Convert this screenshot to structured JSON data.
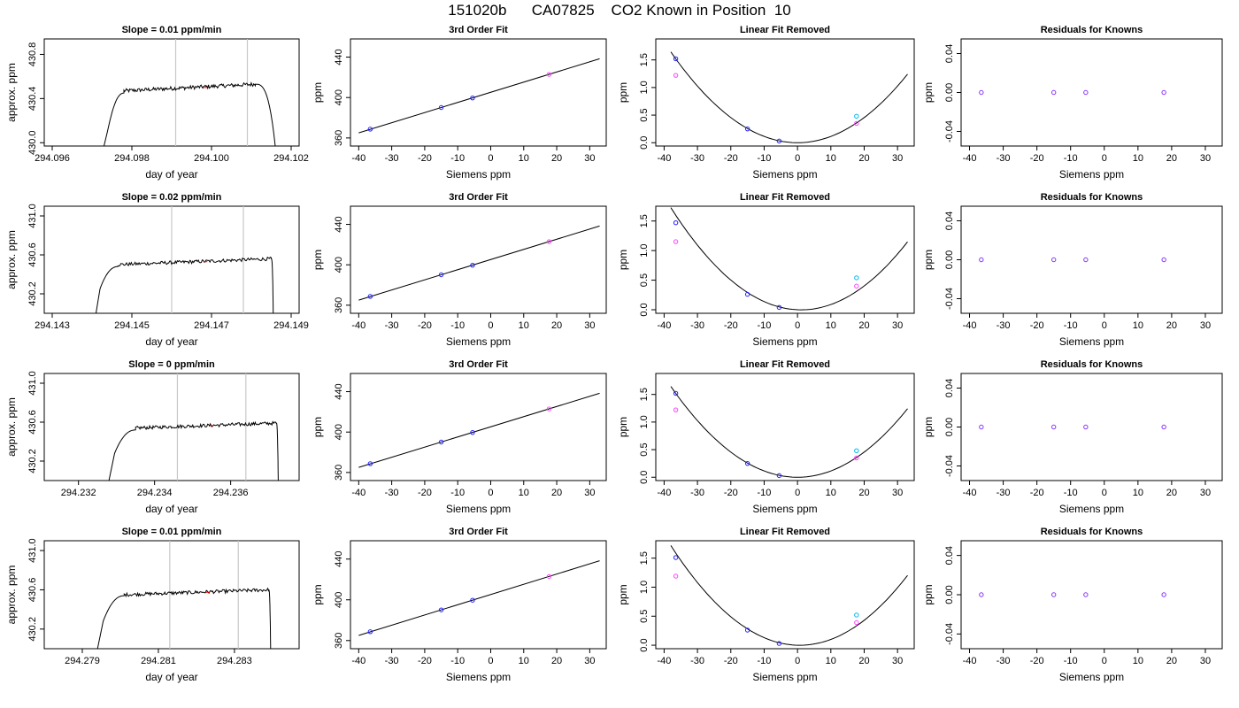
{
  "title": "151020b      CA07825    CO2 Known in Position  10",
  "chart_data": [
    {
      "type": "line",
      "title": "Slope =  0.01  ppm/min",
      "xlabel": "day of year",
      "ylabel": "approx. ppm",
      "xlim": [
        294.0958,
        294.1022
      ],
      "ylim": [
        429.97,
        430.94
      ],
      "xticks": [
        "294.096",
        "294.098",
        "294.100",
        "294.102"
      ],
      "xtick_values": [
        294.096,
        294.098,
        294.1,
        294.102
      ],
      "yticks": [
        "430.0",
        "430.4",
        "430.8"
      ],
      "ytick_values": [
        430.0,
        430.4,
        430.8
      ],
      "vlines": [
        294.0991,
        294.1009
      ],
      "red_marks": [
        294.09985
      ],
      "segments": [
        {
          "x0": 294.0973,
          "x1": 294.09745,
          "y0": 429.97,
          "y1": 430.2
        },
        {
          "x0": 294.09745,
          "x1": 294.0978,
          "y0": 430.2,
          "y1": 430.45,
          "shape": "rise"
        },
        {
          "x0": 294.0978,
          "x1": 294.1011,
          "y0": 430.47,
          "y1": 430.53,
          "shape": "plateau"
        },
        {
          "x0": 294.1011,
          "x1": 294.1016,
          "y0": 430.53,
          "y1": 429.97,
          "shape": "fall"
        }
      ]
    },
    {
      "type": "scatter",
      "title": "3rd Order Fit",
      "xlabel": "Siemens ppm",
      "ylabel": "ppm",
      "xlim": [
        -42.5,
        35
      ],
      "ylim": [
        352,
        458
      ],
      "xticks": [
        "-40",
        "-30",
        "-20",
        "-10",
        "0",
        "10",
        "20",
        "30"
      ],
      "xtick_values": [
        -40,
        -30,
        -20,
        -10,
        0,
        10,
        20,
        30
      ],
      "yticks": [
        "360",
        "400",
        "440"
      ],
      "ytick_values": [
        360,
        400,
        440
      ],
      "fit_line": {
        "slope": 1.005,
        "intercept": 405.2,
        "x": [
          -40,
          33
        ]
      },
      "points": [
        {
          "x": -36.5,
          "y": 368.7,
          "color": "#2222ff"
        },
        {
          "x": -15,
          "y": 390.1,
          "color": "#2222ff"
        },
        {
          "x": -5.5,
          "y": 399.6,
          "color": "#2222ff"
        },
        {
          "x": 17.7,
          "y": 422.9,
          "color": "#ff44ff"
        }
      ]
    },
    {
      "type": "scatter",
      "title": "Linear Fit Removed",
      "xlabel": "Siemens ppm",
      "ylabel": "ppm",
      "xlim": [
        -42.5,
        35
      ],
      "ylim": [
        -0.06,
        1.88
      ],
      "xticks": [
        "-40",
        "-30",
        "-20",
        "-10",
        "0",
        "10",
        "20",
        "30"
      ],
      "xtick_values": [
        -40,
        -30,
        -20,
        -10,
        0,
        10,
        20,
        30
      ],
      "yticks": [
        "0.0",
        "0.5",
        "1.0",
        "1.5"
      ],
      "ytick_values": [
        0,
        0.5,
        1.0,
        1.5
      ],
      "curve": {
        "a": 0.00114,
        "b": 0.0,
        "c": 0.0,
        "x": [
          -38,
          33
        ]
      },
      "points": [
        {
          "x": -36.5,
          "y": 1.52,
          "color": "#2222ff"
        },
        {
          "x": -36.5,
          "y": 1.22,
          "color": "#ff44ff"
        },
        {
          "x": -15,
          "y": 0.25,
          "color": "#2222ff"
        },
        {
          "x": -5.5,
          "y": 0.03,
          "color": "#2222ff"
        },
        {
          "x": 17.7,
          "y": 0.48,
          "color": "#00bbee"
        },
        {
          "x": 17.7,
          "y": 0.35,
          "color": "#ff44ff"
        }
      ]
    },
    {
      "type": "scatter",
      "title": "Residuals for Knowns",
      "xlabel": "Siemens ppm",
      "ylabel": "ppm",
      "xlim": [
        -42.5,
        35
      ],
      "ylim": [
        -0.055,
        0.055
      ],
      "xticks": [
        "-40",
        "-30",
        "-20",
        "-10",
        "0",
        "10",
        "20",
        "30"
      ],
      "xtick_values": [
        -40,
        -30,
        -20,
        -10,
        0,
        10,
        20,
        30
      ],
      "yticks": [
        "-0.04",
        "0.00",
        "0.04"
      ],
      "ytick_values": [
        -0.04,
        0,
        0.04
      ],
      "points": [
        {
          "x": -36.5,
          "y": 0,
          "color": "#8833ff"
        },
        {
          "x": -15,
          "y": 0,
          "color": "#8833ff"
        },
        {
          "x": -5.5,
          "y": 0,
          "color": "#8833ff"
        },
        {
          "x": 17.7,
          "y": 0,
          "color": "#8833ff"
        }
      ]
    },
    {
      "type": "line",
      "title": "Slope =  0.02  ppm/min",
      "xlabel": "day of year",
      "ylabel": "approx. ppm",
      "xlim": [
        294.1428,
        294.1492
      ],
      "ylim": [
        430.0,
        431.1
      ],
      "xticks": [
        "294.143",
        "294.145",
        "294.147",
        "294.149"
      ],
      "xtick_values": [
        294.143,
        294.145,
        294.147,
        294.149
      ],
      "yticks": [
        "430.2",
        "430.6",
        "431.0"
      ],
      "ytick_values": [
        430.2,
        430.6,
        431.0
      ],
      "vlines": [
        294.146,
        294.1478
      ],
      "red_marks": [
        294.14685
      ],
      "segments": [
        {
          "x0": 294.1441,
          "x1": 294.1442,
          "y0": 430.0,
          "y1": 430.25
        },
        {
          "x0": 294.1442,
          "x1": 294.14465,
          "y0": 430.25,
          "y1": 430.48,
          "shape": "rise"
        },
        {
          "x0": 294.14465,
          "x1": 294.1485,
          "y0": 430.5,
          "y1": 430.56,
          "shape": "plateau"
        },
        {
          "x0": 294.1485,
          "x1": 294.14855,
          "y0": 430.56,
          "y1": 430.0,
          "shape": "fall"
        }
      ]
    },
    {
      "type": "scatter",
      "title": "3rd Order Fit",
      "xlabel": "Siemens ppm",
      "ylabel": "ppm",
      "xlim": [
        -42.5,
        35
      ],
      "ylim": [
        352,
        458
      ],
      "xticks": [
        "-40",
        "-30",
        "-20",
        "-10",
        "0",
        "10",
        "20",
        "30"
      ],
      "xtick_values": [
        -40,
        -30,
        -20,
        -10,
        0,
        10,
        20,
        30
      ],
      "yticks": [
        "360",
        "400",
        "440"
      ],
      "ytick_values": [
        360,
        400,
        440
      ],
      "fit_line": {
        "slope": 1.005,
        "intercept": 405.2,
        "x": [
          -40,
          33
        ]
      },
      "points": [
        {
          "x": -36.5,
          "y": 368.7,
          "color": "#2222ff"
        },
        {
          "x": -15,
          "y": 390.1,
          "color": "#2222ff"
        },
        {
          "x": -5.5,
          "y": 399.6,
          "color": "#2222ff"
        },
        {
          "x": 17.7,
          "y": 422.9,
          "color": "#ff44ff"
        }
      ]
    },
    {
      "type": "scatter",
      "title": "Linear Fit Removed",
      "xlabel": "Siemens ppm",
      "ylabel": "ppm",
      "xlim": [
        -42.5,
        35
      ],
      "ylim": [
        -0.06,
        1.75
      ],
      "xticks": [
        "-40",
        "-30",
        "-20",
        "-10",
        "0",
        "10",
        "20",
        "30"
      ],
      "xtick_values": [
        -40,
        -30,
        -20,
        -10,
        0,
        10,
        20,
        30
      ],
      "yticks": [
        "0.0",
        "0.5",
        "1.0",
        "1.5"
      ],
      "ytick_values": [
        0,
        0.5,
        1.0,
        1.5
      ],
      "curve": {
        "a": 0.00113,
        "b": -0.0025,
        "c": 0.0,
        "x": [
          -38,
          33
        ]
      },
      "points": [
        {
          "x": -36.5,
          "y": 1.47,
          "color": "#2222ff"
        },
        {
          "x": -36.5,
          "y": 1.15,
          "color": "#ff44ff"
        },
        {
          "x": -15,
          "y": 0.26,
          "color": "#2222ff"
        },
        {
          "x": -5.5,
          "y": 0.04,
          "color": "#2222ff"
        },
        {
          "x": 17.7,
          "y": 0.54,
          "color": "#00bbee"
        },
        {
          "x": 17.7,
          "y": 0.4,
          "color": "#ff44ff"
        }
      ]
    },
    {
      "type": "scatter",
      "title": "Residuals for Knowns",
      "xlabel": "Siemens ppm",
      "ylabel": "ppm",
      "xlim": [
        -42.5,
        35
      ],
      "ylim": [
        -0.055,
        0.055
      ],
      "xticks": [
        "-40",
        "-30",
        "-20",
        "-10",
        "0",
        "10",
        "20",
        "30"
      ],
      "xtick_values": [
        -40,
        -30,
        -20,
        -10,
        0,
        10,
        20,
        30
      ],
      "yticks": [
        "-0.04",
        "0.00",
        "0.04"
      ],
      "ytick_values": [
        -0.04,
        0,
        0.04
      ],
      "points": [
        {
          "x": -36.5,
          "y": 0,
          "color": "#8833ff"
        },
        {
          "x": -15,
          "y": 0,
          "color": "#8833ff"
        },
        {
          "x": -5.5,
          "y": 0,
          "color": "#8833ff"
        },
        {
          "x": 17.7,
          "y": 0,
          "color": "#8833ff"
        }
      ]
    },
    {
      "type": "line",
      "title": "Slope =  0  ppm/min",
      "xlabel": "day of year",
      "ylabel": "approx. ppm",
      "xlim": [
        294.2311,
        294.2378
      ],
      "ylim": [
        430.0,
        431.1
      ],
      "xticks": [
        "294.232",
        "294.234",
        "294.236"
      ],
      "xtick_values": [
        294.232,
        294.234,
        294.236
      ],
      "yticks": [
        "430.2",
        "430.6",
        "431.0"
      ],
      "ytick_values": [
        430.2,
        430.6,
        431.0
      ],
      "vlines": [
        294.2346,
        294.2364
      ],
      "red_marks": [
        294.2355
      ],
      "segments": [
        {
          "x0": 294.2328,
          "x1": 294.23295,
          "y0": 430.0,
          "y1": 430.28
        },
        {
          "x0": 294.23295,
          "x1": 294.2335,
          "y0": 430.28,
          "y1": 430.52,
          "shape": "rise"
        },
        {
          "x0": 294.2335,
          "x1": 294.2372,
          "y0": 430.54,
          "y1": 430.59,
          "shape": "plateau"
        },
        {
          "x0": 294.2372,
          "x1": 294.23725,
          "y0": 430.59,
          "y1": 430.0,
          "shape": "fall"
        }
      ]
    },
    {
      "type": "scatter",
      "title": "3rd Order Fit",
      "xlabel": "Siemens ppm",
      "ylabel": "ppm",
      "xlim": [
        -42.5,
        35
      ],
      "ylim": [
        352,
        458
      ],
      "xticks": [
        "-40",
        "-30",
        "-20",
        "-10",
        "0",
        "10",
        "20",
        "30"
      ],
      "xtick_values": [
        -40,
        -30,
        -20,
        -10,
        0,
        10,
        20,
        30
      ],
      "yticks": [
        "360",
        "400",
        "440"
      ],
      "ytick_values": [
        360,
        400,
        440
      ],
      "fit_line": {
        "slope": 1.005,
        "intercept": 405.2,
        "x": [
          -40,
          33
        ]
      },
      "points": [
        {
          "x": -36.5,
          "y": 368.7,
          "color": "#2222ff"
        },
        {
          "x": -15,
          "y": 390.1,
          "color": "#2222ff"
        },
        {
          "x": -5.5,
          "y": 399.6,
          "color": "#2222ff"
        },
        {
          "x": 17.7,
          "y": 422.9,
          "color": "#ff44ff"
        }
      ]
    },
    {
      "type": "scatter",
      "title": "Linear Fit Removed",
      "xlabel": "Siemens ppm",
      "ylabel": "ppm",
      "xlim": [
        -42.5,
        35
      ],
      "ylim": [
        -0.06,
        1.88
      ],
      "xticks": [
        "-40",
        "-30",
        "-20",
        "-10",
        "0",
        "10",
        "20",
        "30"
      ],
      "xtick_values": [
        -40,
        -30,
        -20,
        -10,
        0,
        10,
        20,
        30
      ],
      "yticks": [
        "0.0",
        "0.5",
        "1.0",
        "1.5"
      ],
      "ytick_values": [
        0,
        0.5,
        1.0,
        1.5
      ],
      "curve": {
        "a": 0.00114,
        "b": 0.0,
        "c": 0.0,
        "x": [
          -38,
          33
        ]
      },
      "points": [
        {
          "x": -36.5,
          "y": 1.52,
          "color": "#2222ff"
        },
        {
          "x": -36.5,
          "y": 1.22,
          "color": "#ff44ff"
        },
        {
          "x": -15,
          "y": 0.25,
          "color": "#2222ff"
        },
        {
          "x": -5.5,
          "y": 0.03,
          "color": "#2222ff"
        },
        {
          "x": 17.7,
          "y": 0.48,
          "color": "#00bbee"
        },
        {
          "x": 17.7,
          "y": 0.35,
          "color": "#ff44ff"
        }
      ]
    },
    {
      "type": "scatter",
      "title": "Residuals for Knowns",
      "xlabel": "Siemens ppm",
      "ylabel": "ppm",
      "xlim": [
        -42.5,
        35
      ],
      "ylim": [
        -0.055,
        0.055
      ],
      "xticks": [
        "-40",
        "-30",
        "-20",
        "-10",
        "0",
        "10",
        "20",
        "30"
      ],
      "xtick_values": [
        -40,
        -30,
        -20,
        -10,
        0,
        10,
        20,
        30
      ],
      "yticks": [
        "-0.04",
        "0.00",
        "0.04"
      ],
      "ytick_values": [
        -0.04,
        0,
        0.04
      ],
      "points": [
        {
          "x": -36.5,
          "y": 0,
          "color": "#8833ff"
        },
        {
          "x": -15,
          "y": 0,
          "color": "#8833ff"
        },
        {
          "x": -5.5,
          "y": 0,
          "color": "#8833ff"
        },
        {
          "x": 17.7,
          "y": 0,
          "color": "#8833ff"
        }
      ]
    },
    {
      "type": "line",
      "title": "Slope =  0.01  ppm/min",
      "xlabel": "day of year",
      "ylabel": "approx. ppm",
      "xlim": [
        294.278,
        294.2847
      ],
      "ylim": [
        430.0,
        431.1
      ],
      "xticks": [
        "294.279",
        "294.281",
        "294.283"
      ],
      "xtick_values": [
        294.279,
        294.281,
        294.283
      ],
      "yticks": [
        "430.2",
        "430.6",
        "431.0"
      ],
      "ytick_values": [
        430.2,
        430.6,
        431.0
      ],
      "vlines": [
        294.2813,
        294.2831
      ],
      "red_marks": [
        294.2823
      ],
      "segments": [
        {
          "x0": 294.2794,
          "x1": 294.27955,
          "y0": 430.0,
          "y1": 430.28
        },
        {
          "x0": 294.27955,
          "x1": 294.2801,
          "y0": 430.28,
          "y1": 430.54,
          "shape": "rise"
        },
        {
          "x0": 294.2801,
          "x1": 294.2839,
          "y0": 430.55,
          "y1": 430.6,
          "shape": "plateau"
        },
        {
          "x0": 294.2839,
          "x1": 294.28395,
          "y0": 430.6,
          "y1": 430.0,
          "shape": "fall"
        }
      ]
    },
    {
      "type": "scatter",
      "title": "3rd Order Fit",
      "xlabel": "Siemens ppm",
      "ylabel": "ppm",
      "xlim": [
        -42.5,
        35
      ],
      "ylim": [
        352,
        458
      ],
      "xticks": [
        "-40",
        "-30",
        "-20",
        "-10",
        "0",
        "10",
        "20",
        "30"
      ],
      "xtick_values": [
        -40,
        -30,
        -20,
        -10,
        0,
        10,
        20,
        30
      ],
      "yticks": [
        "360",
        "400",
        "440"
      ],
      "ytick_values": [
        360,
        400,
        440
      ],
      "fit_line": {
        "slope": 1.005,
        "intercept": 405.2,
        "x": [
          -40,
          33
        ]
      },
      "points": [
        {
          "x": -36.5,
          "y": 368.7,
          "color": "#2222ff"
        },
        {
          "x": -15,
          "y": 390.1,
          "color": "#2222ff"
        },
        {
          "x": -5.5,
          "y": 399.6,
          "color": "#2222ff"
        },
        {
          "x": 17.7,
          "y": 422.9,
          "color": "#ff44ff"
        }
      ]
    },
    {
      "type": "scatter",
      "title": "Linear Fit Removed",
      "xlabel": "Siemens ppm",
      "ylabel": "ppm",
      "xlim": [
        -42.5,
        35
      ],
      "ylim": [
        -0.06,
        1.8
      ],
      "xticks": [
        "-40",
        "-30",
        "-20",
        "-10",
        "0",
        "10",
        "20",
        "30"
      ],
      "xtick_values": [
        -40,
        -30,
        -20,
        -10,
        0,
        10,
        20,
        30
      ],
      "yticks": [
        "0.0",
        "0.5",
        "1.0",
        "1.5"
      ],
      "ytick_values": [
        0,
        0.5,
        1.0,
        1.5
      ],
      "curve": {
        "a": 0.00115,
        "b": -0.0015,
        "c": 0.0,
        "x": [
          -38,
          33
        ]
      },
      "points": [
        {
          "x": -36.5,
          "y": 1.51,
          "color": "#2222ff"
        },
        {
          "x": -36.5,
          "y": 1.19,
          "color": "#ff44ff"
        },
        {
          "x": -15,
          "y": 0.26,
          "color": "#2222ff"
        },
        {
          "x": -5.5,
          "y": 0.03,
          "color": "#2222ff"
        },
        {
          "x": 17.7,
          "y": 0.52,
          "color": "#00bbee"
        },
        {
          "x": 17.7,
          "y": 0.39,
          "color": "#ff44ff"
        }
      ]
    },
    {
      "type": "scatter",
      "title": "Residuals for Knowns",
      "xlabel": "Siemens ppm",
      "ylabel": "ppm",
      "xlim": [
        -42.5,
        35
      ],
      "ylim": [
        -0.055,
        0.055
      ],
      "xticks": [
        "-40",
        "-30",
        "-20",
        "-10",
        "0",
        "10",
        "20",
        "30"
      ],
      "xtick_values": [
        -40,
        -30,
        -20,
        -10,
        0,
        10,
        20,
        30
      ],
      "yticks": [
        "-0.04",
        "0.00",
        "0.04"
      ],
      "ytick_values": [
        -0.04,
        0,
        0.04
      ],
      "points": [
        {
          "x": -36.5,
          "y": 0,
          "color": "#8833ff"
        },
        {
          "x": -15,
          "y": 0,
          "color": "#8833ff"
        },
        {
          "x": -5.5,
          "y": 0,
          "color": "#8833ff"
        },
        {
          "x": 17.7,
          "y": 0,
          "color": "#8833ff"
        }
      ]
    }
  ]
}
